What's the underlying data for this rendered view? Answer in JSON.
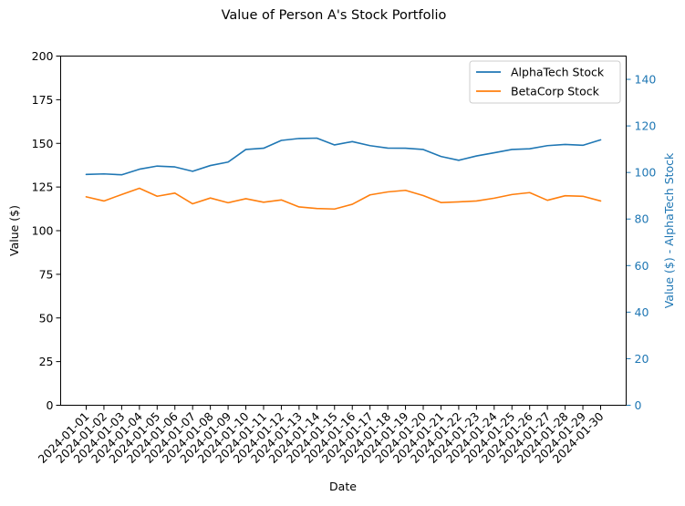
{
  "chart_data": {
    "type": "line",
    "title": "Value of Person A's Stock Portfolio",
    "xlabel": "Date",
    "ylabel": "Value ($)",
    "y2label": "Value ($) - AlphaTech Stock",
    "x": [
      "2024-01-01",
      "2024-01-02",
      "2024-01-03",
      "2024-01-04",
      "2024-01-05",
      "2024-01-06",
      "2024-01-07",
      "2024-01-08",
      "2024-01-09",
      "2024-01-10",
      "2024-01-11",
      "2024-01-12",
      "2024-01-13",
      "2024-01-14",
      "2024-01-15",
      "2024-01-16",
      "2024-01-17",
      "2024-01-18",
      "2024-01-19",
      "2024-01-20",
      "2024-01-21",
      "2024-01-22",
      "2024-01-23",
      "2024-01-24",
      "2024-01-25",
      "2024-01-26",
      "2024-01-27",
      "2024-01-28",
      "2024-01-29",
      "2024-01-30"
    ],
    "ylim": [
      0,
      200
    ],
    "y2lim": [
      0,
      150
    ],
    "yticks": [
      0,
      25,
      50,
      75,
      100,
      125,
      150,
      175,
      200
    ],
    "y2ticks": [
      0,
      20,
      40,
      60,
      80,
      100,
      120,
      140
    ],
    "series": [
      {
        "name": "AlphaTech Stock",
        "color": "#1f77b4",
        "values": [
          132.2,
          132.5,
          132.0,
          135.2,
          137.0,
          136.5,
          134.0,
          137.3,
          139.3,
          146.5,
          147.2,
          151.7,
          152.8,
          153.0,
          149.1,
          151.0,
          148.7,
          147.3,
          147.2,
          146.5,
          142.5,
          140.3,
          142.8,
          144.6,
          146.5,
          146.9,
          148.7,
          149.4,
          148.9,
          152.0
        ]
      },
      {
        "name": "BetaCorp Stock",
        "color": "#ff7f0e",
        "values": [
          119.4,
          117.0,
          120.7,
          124.3,
          119.7,
          121.5,
          115.4,
          118.7,
          116.0,
          118.3,
          116.3,
          117.6,
          113.6,
          112.7,
          112.4,
          115.1,
          120.5,
          122.2,
          123.1,
          120.1,
          116.1,
          116.5,
          117.0,
          118.6,
          120.7,
          121.8,
          117.4,
          120.0,
          119.7,
          117.0
        ]
      }
    ],
    "legend_position": "top-right",
    "grid": false
  }
}
